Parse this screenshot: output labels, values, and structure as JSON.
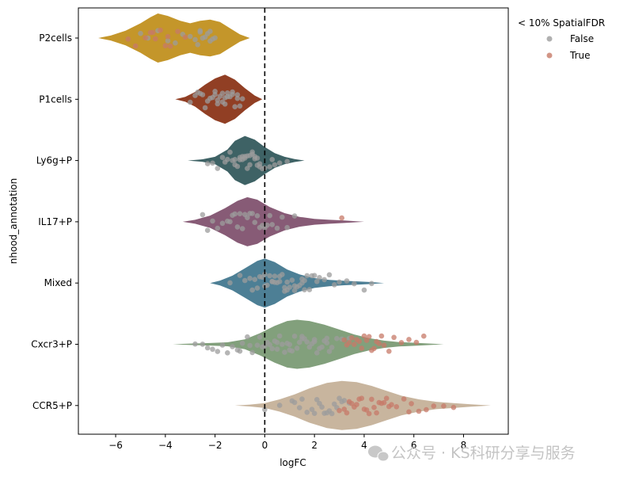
{
  "chart_data": {
    "type": "violin",
    "xlabel": "logFC",
    "ylabel": "nhood_annotation",
    "xlim": [
      -7.5,
      9.8
    ],
    "xticks": [
      -6,
      -4,
      -2,
      0,
      2,
      4,
      6,
      8
    ],
    "xtick_labels": [
      "−6",
      "−4",
      "−2",
      "0",
      "2",
      "4",
      "6",
      "8"
    ],
    "reference_line": {
      "x": 0,
      "style": "dashed",
      "color": "#000000"
    },
    "categories": [
      "P2cells",
      "P1cells",
      "Ly6g+P",
      "IL17+P",
      "Mixed",
      "Cxcr3+P",
      "CCR5+P"
    ],
    "violins": [
      {
        "category": "P2cells",
        "color": "#c4962a",
        "min": -6.7,
        "max": -0.6,
        "profile": [
          [
            -6.7,
            0.0
          ],
          [
            -6.2,
            0.1
          ],
          [
            -5.6,
            0.3
          ],
          [
            -5.0,
            0.6
          ],
          [
            -4.6,
            0.85
          ],
          [
            -4.3,
            1.0
          ],
          [
            -3.9,
            0.9
          ],
          [
            -3.4,
            0.7
          ],
          [
            -3.0,
            0.6
          ],
          [
            -2.6,
            0.7
          ],
          [
            -2.2,
            0.75
          ],
          [
            -1.8,
            0.65
          ],
          [
            -1.4,
            0.4
          ],
          [
            -1.0,
            0.15
          ],
          [
            -0.6,
            0.0
          ]
        ]
      },
      {
        "category": "P1cells",
        "color": "#913f24",
        "min": -3.6,
        "max": -0.1,
        "profile": [
          [
            -3.6,
            0.0
          ],
          [
            -3.2,
            0.1
          ],
          [
            -2.8,
            0.3
          ],
          [
            -2.4,
            0.6
          ],
          [
            -2.0,
            0.85
          ],
          [
            -1.6,
            1.0
          ],
          [
            -1.2,
            0.8
          ],
          [
            -0.8,
            0.45
          ],
          [
            -0.4,
            0.15
          ],
          [
            -0.1,
            0.0
          ]
        ]
      },
      {
        "category": "Ly6g+P",
        "color": "#3e6265",
        "min": -3.1,
        "max": 1.6,
        "profile": [
          [
            -3.1,
            0.0
          ],
          [
            -2.5,
            0.05
          ],
          [
            -2.0,
            0.15
          ],
          [
            -1.5,
            0.45
          ],
          [
            -1.2,
            0.8
          ],
          [
            -0.8,
            1.0
          ],
          [
            -0.4,
            0.85
          ],
          [
            0.0,
            0.55
          ],
          [
            0.4,
            0.3
          ],
          [
            0.8,
            0.15
          ],
          [
            1.2,
            0.06
          ],
          [
            1.6,
            0.0
          ]
        ]
      },
      {
        "category": "IL17+P",
        "color": "#875b76",
        "min": -3.3,
        "max": 4.0,
        "profile": [
          [
            -3.3,
            0.0
          ],
          [
            -2.8,
            0.08
          ],
          [
            -2.2,
            0.25
          ],
          [
            -1.6,
            0.55
          ],
          [
            -1.1,
            0.85
          ],
          [
            -0.7,
            1.0
          ],
          [
            -0.3,
            0.9
          ],
          [
            0.2,
            0.6
          ],
          [
            0.8,
            0.35
          ],
          [
            1.4,
            0.2
          ],
          [
            2.0,
            0.12
          ],
          [
            2.6,
            0.08
          ],
          [
            3.2,
            0.05
          ],
          [
            4.0,
            0.0
          ]
        ]
      },
      {
        "category": "Mixed",
        "color": "#4d7f95",
        "min": -2.2,
        "max": 4.8,
        "profile": [
          [
            -2.2,
            0.0
          ],
          [
            -1.8,
            0.1
          ],
          [
            -1.3,
            0.3
          ],
          [
            -0.8,
            0.6
          ],
          [
            -0.3,
            0.9
          ],
          [
            0.0,
            1.0
          ],
          [
            0.4,
            0.85
          ],
          [
            0.9,
            0.55
          ],
          [
            1.4,
            0.35
          ],
          [
            2.0,
            0.2
          ],
          [
            2.6,
            0.13
          ],
          [
            3.2,
            0.09
          ],
          [
            3.8,
            0.06
          ],
          [
            4.3,
            0.04
          ],
          [
            4.8,
            0.0
          ]
        ]
      },
      {
        "category": "Cxcr3+P",
        "color": "#82a07c",
        "min": -3.7,
        "max": 7.2,
        "profile": [
          [
            -3.7,
            0.0
          ],
          [
            -3.0,
            0.03
          ],
          [
            -2.2,
            0.05
          ],
          [
            -1.5,
            0.08
          ],
          [
            -0.8,
            0.2
          ],
          [
            -0.2,
            0.45
          ],
          [
            0.4,
            0.75
          ],
          [
            0.9,
            0.95
          ],
          [
            1.3,
            1.0
          ],
          [
            1.8,
            0.95
          ],
          [
            2.4,
            0.8
          ],
          [
            3.0,
            0.6
          ],
          [
            3.6,
            0.4
          ],
          [
            4.2,
            0.25
          ],
          [
            4.8,
            0.15
          ],
          [
            5.4,
            0.09
          ],
          [
            6.2,
            0.05
          ],
          [
            7.2,
            0.0
          ]
        ]
      },
      {
        "category": "CCR5+P",
        "color": "#c8b59e",
        "min": -1.2,
        "max": 9.1,
        "profile": [
          [
            -1.2,
            0.0
          ],
          [
            -0.6,
            0.04
          ],
          [
            0.0,
            0.1
          ],
          [
            0.6,
            0.25
          ],
          [
            1.2,
            0.45
          ],
          [
            1.8,
            0.7
          ],
          [
            2.5,
            0.92
          ],
          [
            3.1,
            1.0
          ],
          [
            3.7,
            0.95
          ],
          [
            4.3,
            0.8
          ],
          [
            4.9,
            0.6
          ],
          [
            5.5,
            0.4
          ],
          [
            6.2,
            0.25
          ],
          [
            6.9,
            0.15
          ],
          [
            7.6,
            0.1
          ],
          [
            8.3,
            0.05
          ],
          [
            9.1,
            0.0
          ]
        ]
      }
    ],
    "points": [
      {
        "category": "P2cells",
        "false": [
          -2.0,
          -2.1,
          -2.2,
          -2.3,
          -2.4,
          -2.5,
          -2.6,
          -2.7,
          -2.8,
          -3.0,
          -3.3,
          -3.6,
          -3.9,
          -4.3,
          -4.7,
          -5.0,
          -2.2,
          -2.6
        ],
        "true": [
          -5.5,
          -4.8,
          -4.5,
          -4.2,
          -4.0,
          -3.8,
          -3.5,
          -3.2,
          -5.2,
          -4.6,
          -3.9,
          -4.4
        ]
      },
      {
        "category": "P1cells",
        "false": [
          -3.0,
          -2.8,
          -2.6,
          -2.4,
          -2.2,
          -2.0,
          -1.9,
          -1.8,
          -1.7,
          -1.6,
          -1.5,
          -1.4,
          -1.3,
          -1.2,
          -1.1,
          -1.0,
          -0.9,
          -2.5,
          -2.3,
          -2.1,
          -1.9,
          -1.7,
          -1.5,
          -1.3,
          -1.1,
          -2.7,
          -2.0,
          -1.6
        ],
        "true": []
      },
      {
        "category": "Ly6g+P",
        "false": [
          -2.3,
          -2.1,
          -1.9,
          -1.7,
          -1.5,
          -1.3,
          -1.2,
          -1.1,
          -1.0,
          -0.9,
          -0.8,
          -0.7,
          -0.6,
          -0.5,
          -0.4,
          -0.3,
          -0.2,
          -0.1,
          0.0,
          0.2,
          0.4,
          0.6,
          0.9,
          -1.4,
          -1.0,
          -0.8,
          -0.6,
          -0.4,
          -0.2,
          -1.2,
          -0.9,
          -0.7,
          -0.5,
          -0.3,
          -1.6,
          0.3
        ],
        "true": []
      },
      {
        "category": "IL17+P",
        "false": [
          -2.5,
          -2.3,
          -2.1,
          -1.9,
          -1.7,
          -1.5,
          -1.3,
          -1.1,
          -0.9,
          -0.7,
          -0.5,
          -0.3,
          -0.1,
          0.1,
          0.3,
          0.5,
          0.7,
          0.9,
          1.2,
          -1.0,
          -0.8,
          -0.6,
          -0.4,
          -0.2,
          0.0,
          0.2,
          -1.4,
          -1.2
        ],
        "true": [
          3.1
        ]
      },
      {
        "category": "Mixed",
        "false": [
          -1.4,
          -1.0,
          -0.8,
          -0.6,
          -0.4,
          -0.3,
          -0.2,
          -0.1,
          0.0,
          0.1,
          0.2,
          0.3,
          0.4,
          0.5,
          0.6,
          0.7,
          0.8,
          0.9,
          1.0,
          1.1,
          1.2,
          1.3,
          1.4,
          1.5,
          1.6,
          1.7,
          1.8,
          1.9,
          2.0,
          2.2,
          2.4,
          2.6,
          2.8,
          3.0,
          3.3,
          3.6,
          4.0,
          4.3,
          0.3,
          0.6,
          0.9,
          1.2,
          1.5,
          -0.5,
          0.0,
          0.4,
          0.8,
          1.6,
          2.1
        ],
        "true": []
      },
      {
        "category": "Cxcr3+P",
        "false": [
          -2.5,
          -2.3,
          -2.1,
          -1.9,
          -1.7,
          -1.5,
          -1.3,
          -1.1,
          -0.9,
          -0.7,
          -0.5,
          -0.3,
          -0.1,
          0.1,
          0.3,
          0.5,
          0.7,
          0.9,
          1.1,
          1.3,
          1.5,
          1.7,
          1.9,
          2.1,
          2.3,
          2.5,
          2.7,
          2.9,
          3.1,
          0.2,
          0.4,
          0.6,
          0.8,
          1.0,
          1.2,
          1.4,
          1.6,
          1.8,
          2.0,
          2.2,
          2.4,
          2.6,
          0.0,
          0.5,
          1.0,
          1.5,
          2.0,
          2.5,
          -1.0,
          -0.6,
          -0.2,
          3.4,
          -2.8
        ],
        "true": [
          3.2,
          3.4,
          3.6,
          3.8,
          4.0,
          4.2,
          4.4,
          4.6,
          4.8,
          5.0,
          5.2,
          5.5,
          5.8,
          6.1,
          6.4,
          3.5,
          3.9,
          4.3,
          4.7,
          3.3,
          4.1,
          4.5,
          3.7
        ]
      },
      {
        "category": "CCR5+P",
        "false": [
          0.0,
          0.6,
          1.1,
          1.4,
          1.7,
          2.0,
          2.2,
          2.4,
          2.6,
          2.8,
          3.0,
          3.2,
          1.5,
          1.9,
          2.3,
          2.7,
          3.1,
          3.4,
          1.2,
          2.1,
          2.5,
          2.9
        ],
        "true": [
          3.0,
          3.2,
          3.4,
          3.6,
          3.8,
          4.0,
          4.2,
          4.4,
          4.6,
          4.8,
          5.0,
          5.3,
          5.6,
          5.9,
          6.2,
          6.5,
          6.8,
          7.2,
          7.6,
          3.5,
          3.9,
          4.3,
          4.7,
          3.3,
          4.1,
          4.5,
          5.1,
          5.8,
          3.7,
          4.9
        ]
      }
    ],
    "point_colors": {
      "false": "#9c9c9c",
      "true": "#c77a68"
    },
    "legend": {
      "title": "< 10% SpatialFDR",
      "entries": [
        "False",
        "True"
      ],
      "placement": "outside-right-top"
    }
  },
  "watermark": {
    "text": "公众号 · KS科研分享与服务",
    "icon": "wechat-icon"
  }
}
